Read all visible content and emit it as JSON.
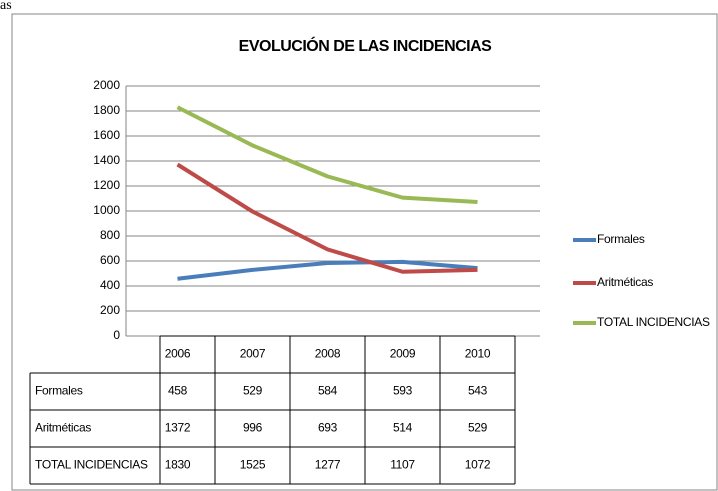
{
  "fragment": "as",
  "chart_data": {
    "type": "line",
    "title": "EVOLUCIÓN DE  LAS INCIDENCIAS",
    "categories": [
      "2006",
      "2007",
      "2008",
      "2009",
      "2010"
    ],
    "series": [
      {
        "name": "Formales",
        "color": "#4a7ebb",
        "values": [
          458,
          529,
          584,
          593,
          543
        ]
      },
      {
        "name": "Aritméticas",
        "color": "#be4b48",
        "values": [
          1372,
          996,
          693,
          514,
          529
        ]
      },
      {
        "name": "TOTAL INCIDENCIAS",
        "color": "#98b954",
        "values": [
          1830,
          1525,
          1277,
          1107,
          1072
        ]
      }
    ],
    "ylim": [
      0,
      2000
    ],
    "yticks": [
      0,
      200,
      400,
      600,
      800,
      1000,
      1200,
      1400,
      1600,
      1800,
      2000
    ],
    "grid": true,
    "legend": "right",
    "data_table": true
  }
}
